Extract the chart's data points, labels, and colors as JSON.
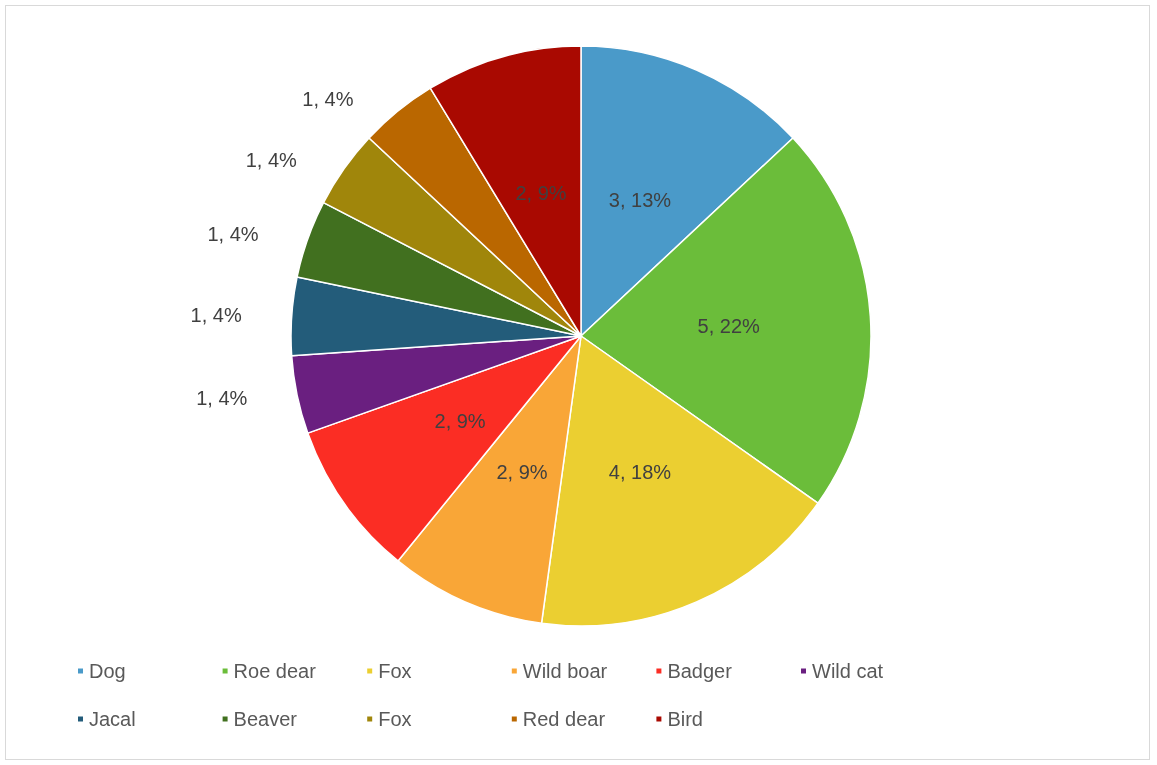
{
  "chart_data": {
    "type": "pie",
    "categories": [
      "Dog",
      "Roe dear",
      "Fox",
      "Wild boar",
      "Badger",
      "Wild cat",
      "Jacal",
      "Beaver",
      "Fox",
      "Red dear",
      "Bird"
    ],
    "values": [
      3,
      5,
      4,
      2,
      2,
      1,
      1,
      1,
      1,
      1,
      2
    ],
    "colors": [
      "#4a9ac9",
      "#6bbd3a",
      "#ebcf31",
      "#f9a637",
      "#fb2d24",
      "#6a1f80",
      "#235c7a",
      "#41701f",
      "#a0860b",
      "#ba6700",
      "#a90901"
    ],
    "value_labels": [
      "3, 13%",
      "5, 22%",
      "4, 18%",
      "2, 9%",
      "2, 9%",
      "1, 4%",
      "1, 4%",
      "1, 4%",
      "1, 4%",
      "1, 4%",
      "2, 9%"
    ],
    "legend": "bottom"
  }
}
